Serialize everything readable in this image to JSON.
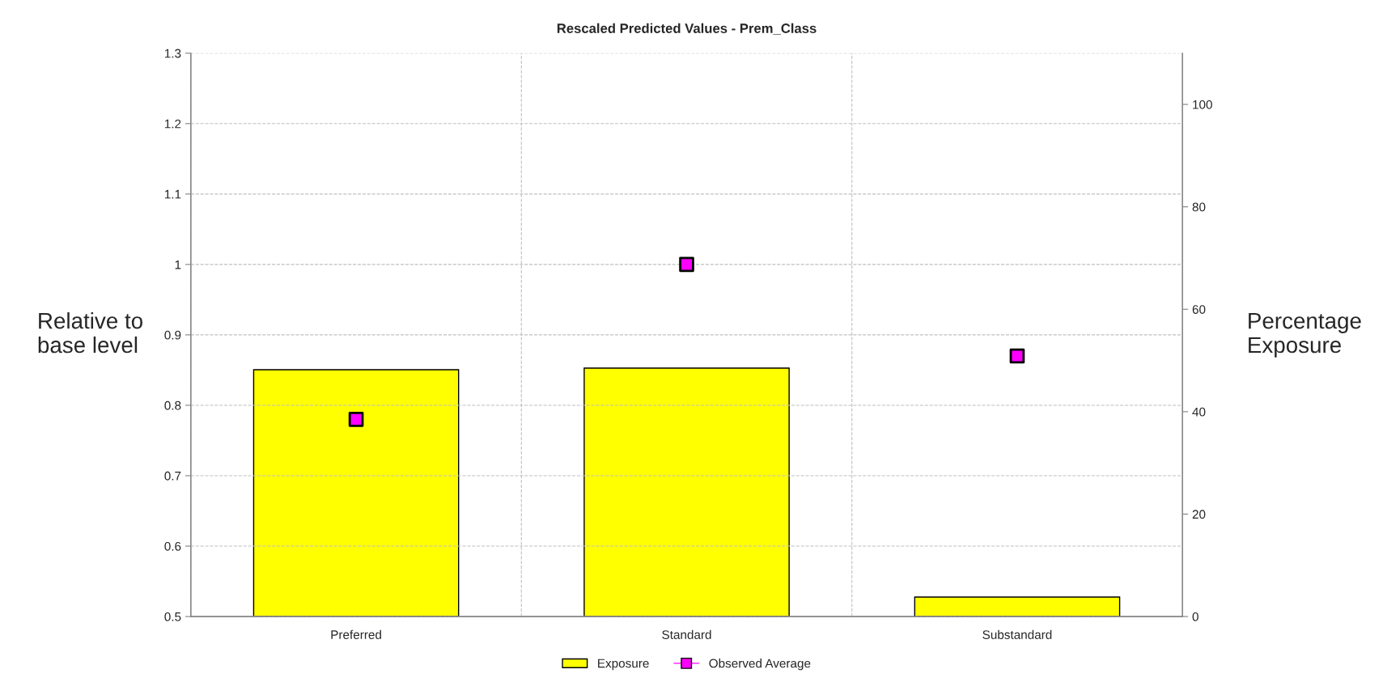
{
  "chart_data": {
    "type": "bar",
    "title": "Rescaled Predicted Values - Prem_Class",
    "ylabel": "Relative to\nbase level",
    "y2label": "Percentage\nExposure",
    "categories": [
      "Preferred",
      "Standard",
      "Substandard"
    ],
    "series": [
      {
        "name": "Exposure",
        "axis": "y2",
        "color": "#ffff00",
        "values": [
          48.2,
          48.5,
          3.8
        ]
      },
      {
        "name": "Observed Average",
        "type": "scatter",
        "marker": "square",
        "color": "#ff00ff",
        "values": [
          0.78,
          1.0,
          0.87
        ]
      }
    ],
    "ylim": [
      0.5,
      1.3
    ],
    "yticks": [
      0.5,
      0.6,
      0.7,
      0.8,
      0.9,
      1,
      1.1,
      1.2,
      1.3
    ],
    "y2lim": [
      0,
      110
    ],
    "y2ticks": [
      0,
      20,
      40,
      60,
      80,
      100
    ],
    "grid": true,
    "legend": "bottom"
  }
}
